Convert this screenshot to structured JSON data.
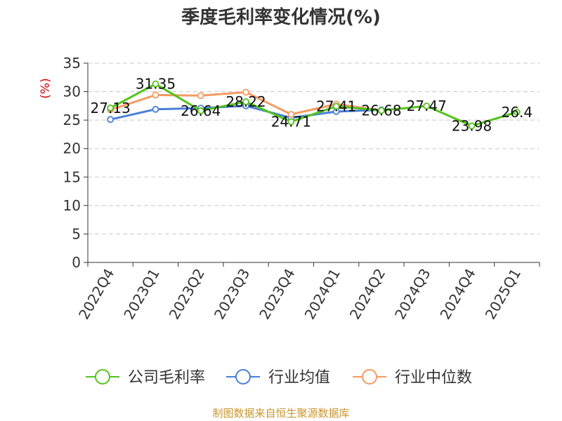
{
  "chart_data": {
    "type": "line",
    "title": "季度毛利率变化情况(%)",
    "ylabel": "(%)",
    "xlabel": "",
    "categories": [
      "2022Q4",
      "2023Q1",
      "2023Q2",
      "2023Q3",
      "2023Q4",
      "2024Q1",
      "2024Q2",
      "2024Q3",
      "2024Q4",
      "2025Q1"
    ],
    "ylim": [
      0,
      35
    ],
    "yticks": [
      0,
      5,
      10,
      15,
      20,
      25,
      30,
      35
    ],
    "grid": true,
    "legend_position": "bottom",
    "series": [
      {
        "name": "公司毛利率",
        "color": "#52c41a",
        "values": [
          27.13,
          31.35,
          26.64,
          28.22,
          24.71,
          27.41,
          26.68,
          27.47,
          23.98,
          26.4
        ],
        "labels": [
          "27.13",
          "31.35",
          "26.64",
          "28.22",
          "24.71",
          "27.41",
          "26.68",
          "27.47",
          "23.98",
          "26.4"
        ]
      },
      {
        "name": "行业均值",
        "color": "#4a7fd8",
        "values": [
          25.1,
          26.9,
          27.1,
          27.5,
          25.4,
          26.5,
          26.8,
          null,
          null,
          null
        ]
      },
      {
        "name": "行业中位数",
        "color": "#f59a62",
        "values": [
          26.8,
          29.4,
          29.3,
          29.9,
          26.0,
          27.8,
          26.7,
          null,
          null,
          null
        ]
      }
    ],
    "source": "制图数据来自恒生聚源数据库"
  }
}
